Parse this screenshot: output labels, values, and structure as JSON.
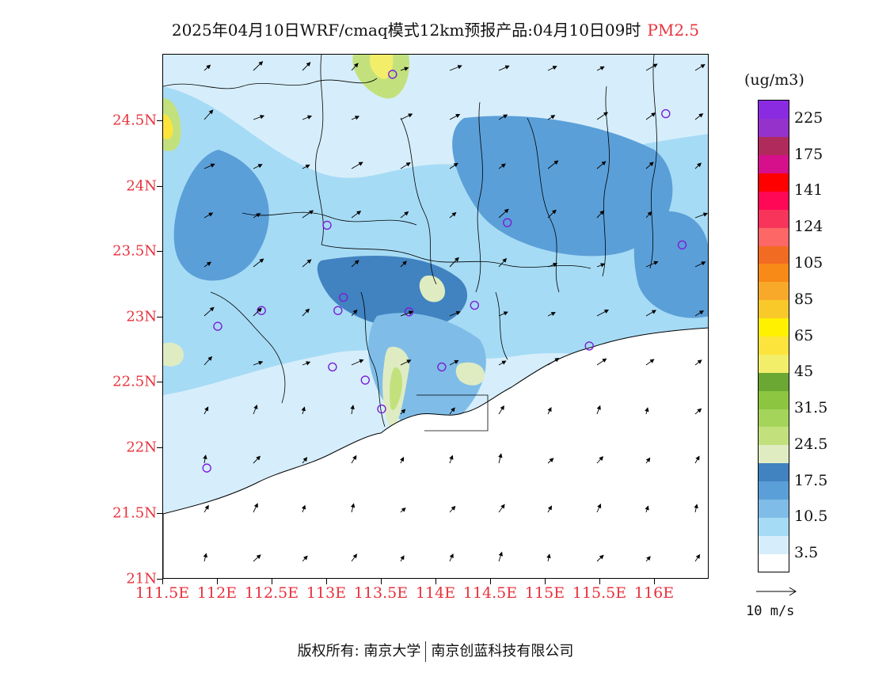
{
  "title": {
    "main": "2025年04月10日WRF/cmaq模式12km预报产品:04月10日09时",
    "variable": "PM2.5"
  },
  "map": {
    "lat_labels": [
      "21N",
      "21.5N",
      "22N",
      "22.5N",
      "23N",
      "23.5N",
      "24N",
      "24.5N"
    ],
    "lon_labels": [
      "111.5E",
      "112E",
      "112.5E",
      "113E",
      "113.5E",
      "114E",
      "114.5E",
      "115E",
      "115.5E",
      "116E"
    ],
    "lon_range": [
      111.5,
      116.5
    ],
    "lat_range": [
      21.0,
      25.0
    ],
    "background_colors": {
      "land_light": "#d6eefb",
      "sea": "#ffffff"
    }
  },
  "stations": [
    {
      "lon": 113.6,
      "lat": 24.85
    },
    {
      "lon": 116.1,
      "lat": 24.55
    },
    {
      "lon": 113.0,
      "lat": 23.7
    },
    {
      "lon": 114.65,
      "lat": 23.72
    },
    {
      "lon": 116.25,
      "lat": 23.55
    },
    {
      "lon": 113.15,
      "lat": 23.15
    },
    {
      "lon": 113.1,
      "lat": 23.05
    },
    {
      "lon": 112.4,
      "lat": 23.05
    },
    {
      "lon": 113.75,
      "lat": 23.04
    },
    {
      "lon": 114.35,
      "lat": 23.09
    },
    {
      "lon": 112.0,
      "lat": 22.93
    },
    {
      "lon": 115.4,
      "lat": 22.78
    },
    {
      "lon": 113.05,
      "lat": 22.62
    },
    {
      "lon": 114.05,
      "lat": 22.62
    },
    {
      "lon": 113.35,
      "lat": 22.52
    },
    {
      "lon": 113.5,
      "lat": 22.3
    },
    {
      "lon": 111.9,
      "lat": 21.85
    }
  ],
  "colorbar": {
    "unit": "(ug/m3)",
    "levels": [
      "3.5",
      "10.5",
      "17.5",
      "24.5",
      "31.5",
      "45",
      "65",
      "85",
      "105",
      "124",
      "141",
      "175",
      "225"
    ],
    "colors": [
      "#ffffff",
      "#d6eefb",
      "#a6dbf5",
      "#7fbde8",
      "#5b9fd8",
      "#4182c0",
      "#dfecc2",
      "#c2e17d",
      "#a4d45a",
      "#8cc640",
      "#6aa833",
      "#f2ee6a",
      "#fde43c",
      "#fff100",
      "#f9c829",
      "#f8a92a",
      "#f88a18",
      "#f26b22",
      "#fd6766",
      "#f8345b",
      "#ff0855",
      "#ff0000",
      "#d6108a",
      "#b02a5c",
      "#9532cc",
      "#8a2be2"
    ]
  },
  "wind_key": {
    "label": "10 m/s"
  },
  "footer": {
    "copyright": "版权所有: 南京大学",
    "company": "南京创蓝科技有限公司"
  }
}
